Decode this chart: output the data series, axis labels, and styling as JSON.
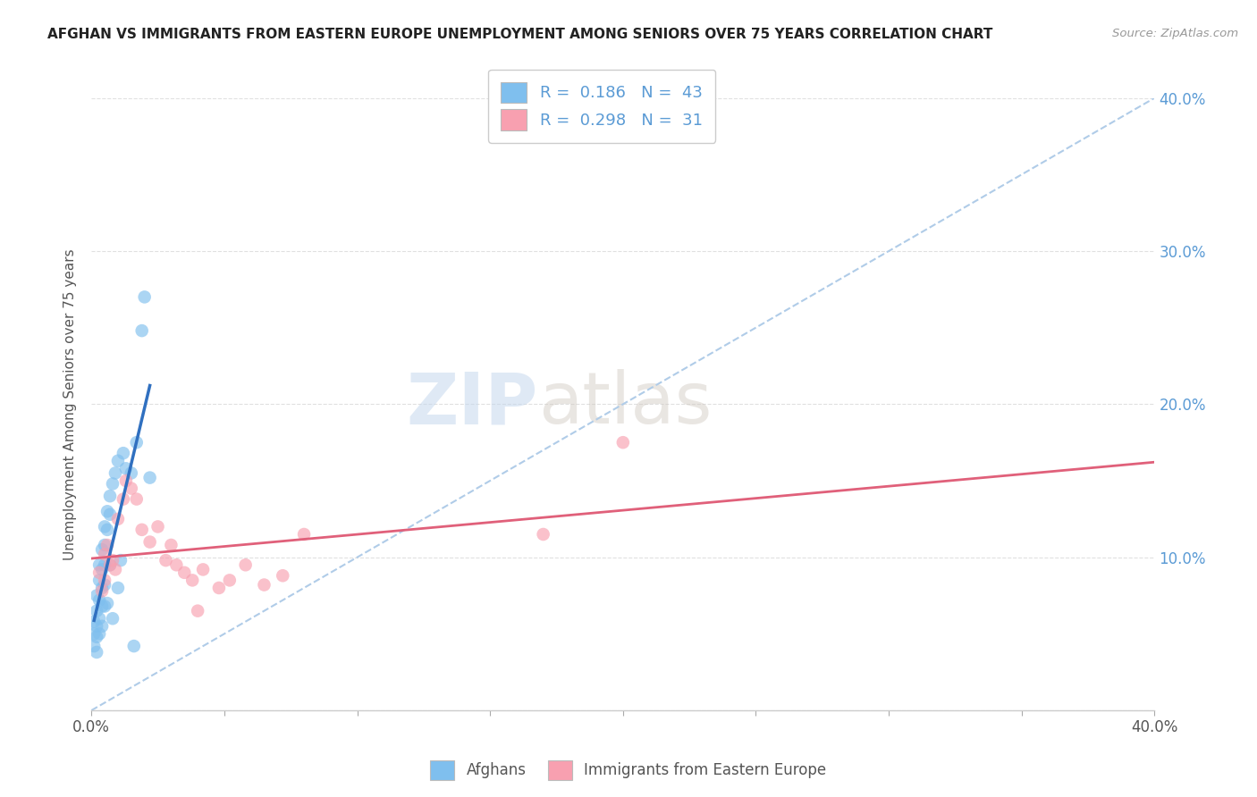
{
  "title": "AFGHAN VS IMMIGRANTS FROM EASTERN EUROPE UNEMPLOYMENT AMONG SENIORS OVER 75 YEARS CORRELATION CHART",
  "source": "Source: ZipAtlas.com",
  "ylabel": "Unemployment Among Seniors over 75 years",
  "xlim": [
    0.0,
    0.4
  ],
  "ylim": [
    0.0,
    0.4
  ],
  "blue_color": "#7fbfee",
  "pink_color": "#f8a0b0",
  "blue_line_color": "#3070c0",
  "pink_line_color": "#e0607a",
  "dashed_line_color": "#b0cce8",
  "legend_R1": "0.186",
  "legend_N1": "43",
  "legend_R2": "0.298",
  "legend_N2": "31",
  "label1": "Afghans",
  "label2": "Immigrants from Eastern Europe",
  "watermark_zip": "ZIP",
  "watermark_atlas": "atlas",
  "blue_scatter_x": [
    0.001,
    0.001,
    0.001,
    0.002,
    0.002,
    0.002,
    0.002,
    0.002,
    0.003,
    0.003,
    0.003,
    0.003,
    0.003,
    0.004,
    0.004,
    0.004,
    0.004,
    0.004,
    0.005,
    0.005,
    0.005,
    0.005,
    0.005,
    0.006,
    0.006,
    0.006,
    0.007,
    0.007,
    0.007,
    0.008,
    0.008,
    0.009,
    0.01,
    0.01,
    0.011,
    0.012,
    0.013,
    0.015,
    0.017,
    0.019,
    0.02,
    0.022,
    0.016
  ],
  "blue_scatter_y": [
    0.058,
    0.05,
    0.042,
    0.075,
    0.065,
    0.055,
    0.048,
    0.038,
    0.095,
    0.085,
    0.072,
    0.06,
    0.05,
    0.105,
    0.092,
    0.08,
    0.068,
    0.055,
    0.12,
    0.108,
    0.095,
    0.082,
    0.068,
    0.13,
    0.118,
    0.07,
    0.14,
    0.128,
    0.095,
    0.148,
    0.06,
    0.155,
    0.163,
    0.08,
    0.098,
    0.168,
    0.158,
    0.155,
    0.175,
    0.248,
    0.27,
    0.152,
    0.042
  ],
  "pink_scatter_x": [
    0.003,
    0.004,
    0.005,
    0.005,
    0.006,
    0.007,
    0.008,
    0.009,
    0.01,
    0.012,
    0.013,
    0.015,
    0.017,
    0.019,
    0.022,
    0.025,
    0.028,
    0.03,
    0.032,
    0.035,
    0.038,
    0.042,
    0.048,
    0.052,
    0.058,
    0.065,
    0.072,
    0.08,
    0.17,
    0.2,
    0.04
  ],
  "pink_scatter_y": [
    0.09,
    0.078,
    0.102,
    0.085,
    0.108,
    0.095,
    0.098,
    0.092,
    0.125,
    0.138,
    0.15,
    0.145,
    0.138,
    0.118,
    0.11,
    0.12,
    0.098,
    0.108,
    0.095,
    0.09,
    0.085,
    0.092,
    0.08,
    0.085,
    0.095,
    0.082,
    0.088,
    0.115,
    0.115,
    0.175,
    0.065
  ],
  "background_color": "#ffffff",
  "grid_color": "#e0e0e0",
  "text_color": "#555555",
  "blue_accent": "#5B9BD5",
  "title_color": "#222222"
}
